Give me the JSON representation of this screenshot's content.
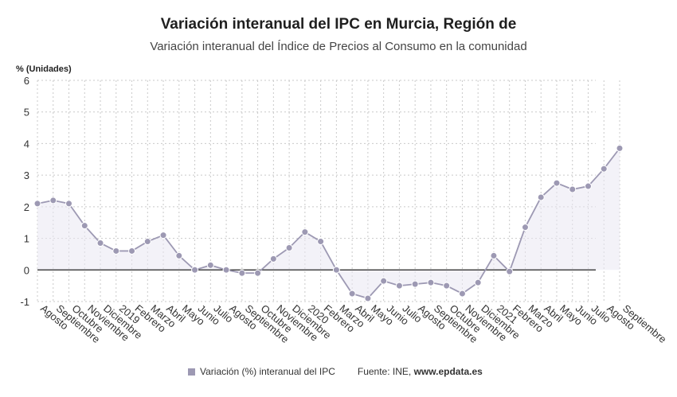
{
  "chart_data": {
    "type": "line",
    "title": "Variación interanual del IPC en Murcia, Región de",
    "subtitle": "Variación interanual del Índice de Precios al Consumo en la comunidad",
    "ylabel": "% (Unidades)",
    "ylim": [
      -1,
      6
    ],
    "yticks": [
      -1,
      0,
      1,
      2,
      3,
      4,
      5,
      6
    ],
    "grid": true,
    "categories": [
      "Agosto",
      "Septiembre",
      "Octubre",
      "Noviembre",
      "Diciembre",
      "2019",
      "Febrero",
      "Marzo",
      "Abril",
      "Mayo",
      "Junio",
      "Julio",
      "Agosto",
      "Septiembre",
      "Octubre",
      "Noviembre",
      "Diciembre",
      "2020",
      "Febrero",
      "Marzo",
      "Abril",
      "Mayo",
      "Junio",
      "Julio",
      "Agosto",
      "Septiembre",
      "Octubre",
      "Noviembre",
      "Diciembre",
      "2021",
      "Febrero",
      "Marzo",
      "Abril",
      "Mayo",
      "Junio",
      "Julio",
      "Agosto",
      "Septiembre"
    ],
    "series": [
      {
        "name": "Variación (%) interanual del IPC",
        "color": "#9d99b3",
        "values": [
          2.1,
          2.2,
          2.1,
          1.4,
          0.85,
          0.6,
          0.6,
          0.9,
          1.1,
          0.45,
          0.0,
          0.15,
          0.0,
          -0.1,
          -0.1,
          0.35,
          0.7,
          1.2,
          0.9,
          0.0,
          -0.75,
          -0.9,
          -0.35,
          -0.5,
          -0.45,
          -0.4,
          -0.5,
          -0.75,
          -0.4,
          0.45,
          -0.05,
          1.35,
          2.3,
          2.75,
          2.55,
          2.65,
          3.2,
          3.85
        ]
      }
    ]
  },
  "legend": {
    "label": "Variación (%) interanual del IPC",
    "color": "#9d99b3"
  },
  "source": {
    "prefix": "Fuente: INE, ",
    "site": "www.epdata.es"
  }
}
